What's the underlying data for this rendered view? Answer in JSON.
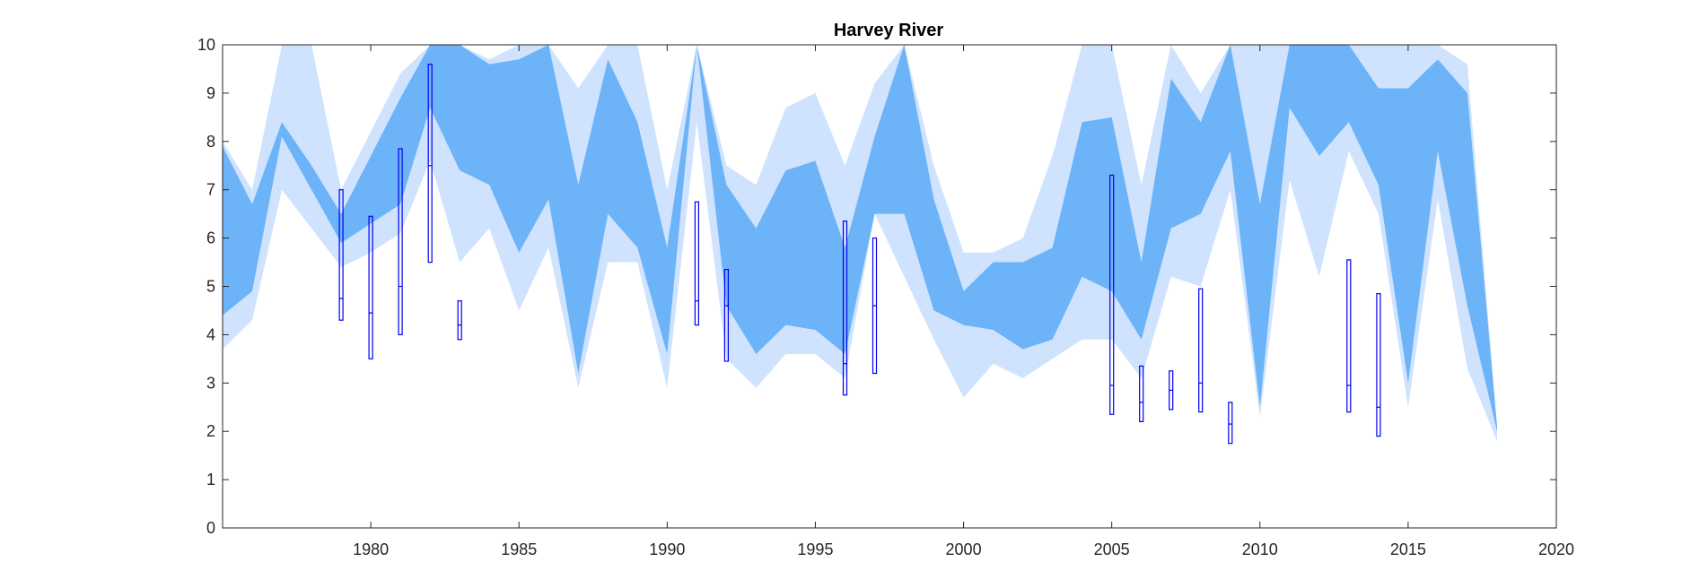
{
  "chart_data": {
    "type": "area",
    "title": "Harvey River",
    "xlabel": "",
    "ylabel": "",
    "xlim": [
      1975,
      2020
    ],
    "ylim": [
      0,
      10
    ],
    "xticks": [
      1980,
      1985,
      1990,
      1995,
      2000,
      2005,
      2010,
      2015,
      2020
    ],
    "yticks": [
      0,
      1,
      2,
      3,
      4,
      5,
      6,
      7,
      8,
      9,
      10
    ],
    "grid": false,
    "colors": {
      "outer_band": "#cfe3ff",
      "inner_band": "#6db3f7",
      "box": "#0000ee",
      "axis": "#262626"
    },
    "outer_band": {
      "x": [
        1975,
        1976,
        1977,
        1978,
        1979,
        1980,
        1981,
        1982,
        1983,
        1984,
        1985,
        1986,
        1987,
        1988,
        1989,
        1990,
        1991,
        1992,
        1993,
        1994,
        1995,
        1996,
        1997,
        1998,
        1999,
        2000,
        2001,
        2002,
        2003,
        2004,
        2005,
        2006,
        2007,
        2008,
        2009,
        2010,
        2011,
        2012,
        2013,
        2014,
        2015,
        2016,
        2017,
        2018
      ],
      "upper": [
        8.0,
        7.0,
        10.0,
        10.0,
        7.0,
        8.2,
        9.4,
        10.0,
        10.0,
        9.7,
        10.0,
        10.0,
        9.1,
        10.0,
        10.0,
        7.0,
        10.0,
        7.5,
        7.1,
        8.7,
        9.0,
        7.5,
        9.2,
        10.0,
        7.5,
        5.7,
        5.7,
        6.0,
        7.7,
        10.0,
        10.0,
        7.1,
        10.0,
        9.0,
        10.0,
        10.0,
        10.0,
        10.0,
        10.0,
        10.0,
        10.0,
        10.0,
        9.6,
        2.1
      ],
      "lower": [
        3.7,
        4.3,
        7.0,
        6.2,
        5.4,
        5.7,
        6.1,
        7.6,
        5.5,
        6.2,
        4.5,
        5.8,
        2.9,
        5.5,
        5.5,
        2.9,
        8.4,
        3.5,
        2.9,
        3.6,
        3.6,
        3.1,
        6.5,
        5.2,
        3.9,
        2.7,
        3.4,
        3.1,
        3.5,
        3.9,
        3.9,
        3.1,
        5.2,
        5.0,
        7.0,
        2.3,
        7.2,
        5.2,
        7.8,
        6.5,
        2.5,
        6.8,
        3.3,
        1.8
      ]
    },
    "inner_band": {
      "x": [
        1975,
        1976,
        1977,
        1978,
        1979,
        1980,
        1981,
        1982,
        1983,
        1984,
        1985,
        1986,
        1987,
        1988,
        1989,
        1990,
        1991,
        1992,
        1993,
        1994,
        1995,
        1996,
        1997,
        1998,
        1999,
        2000,
        2001,
        2002,
        2003,
        2004,
        2005,
        2006,
        2007,
        2008,
        2009,
        2010,
        2011,
        2012,
        2013,
        2014,
        2015,
        2016,
        2017,
        2018
      ],
      "upper": [
        7.9,
        6.7,
        8.4,
        7.5,
        6.5,
        7.7,
        8.9,
        10.0,
        10.0,
        9.6,
        9.7,
        10.0,
        7.1,
        9.7,
        8.4,
        5.8,
        10.0,
        7.1,
        6.2,
        7.4,
        7.6,
        5.8,
        8.1,
        10.0,
        6.8,
        4.9,
        5.5,
        5.5,
        5.8,
        8.4,
        8.5,
        5.5,
        9.3,
        8.4,
        10.0,
        6.7,
        10.0,
        10.0,
        10.0,
        9.1,
        9.1,
        9.7,
        9.0,
        2.1
      ],
      "lower": [
        4.4,
        4.9,
        8.1,
        7.0,
        5.9,
        6.3,
        6.7,
        8.7,
        7.4,
        7.1,
        5.7,
        6.8,
        3.2,
        6.5,
        5.8,
        3.6,
        10.0,
        4.6,
        3.6,
        4.2,
        4.1,
        3.6,
        6.5,
        6.5,
        4.5,
        4.2,
        4.1,
        3.7,
        3.9,
        5.2,
        4.9,
        3.9,
        6.2,
        6.5,
        7.8,
        2.5,
        8.7,
        7.7,
        8.4,
        7.1,
        3.0,
        7.8,
        4.6,
        2.0
      ]
    },
    "boxes": [
      {
        "x": 1979,
        "low": 4.3,
        "median": 4.75,
        "high": 7.0
      },
      {
        "x": 1980,
        "low": 3.5,
        "median": 4.45,
        "high": 6.45
      },
      {
        "x": 1981,
        "low": 4.0,
        "median": 5.0,
        "high": 7.85
      },
      {
        "x": 1982,
        "low": 5.5,
        "median": 7.5,
        "high": 9.6
      },
      {
        "x": 1983,
        "low": 3.9,
        "median": 4.2,
        "high": 4.7
      },
      {
        "x": 1991,
        "low": 4.2,
        "median": 4.7,
        "high": 6.75
      },
      {
        "x": 1992,
        "low": 3.45,
        "median": 4.6,
        "high": 5.35
      },
      {
        "x": 1996,
        "low": 2.75,
        "median": 3.4,
        "high": 6.35
      },
      {
        "x": 1997,
        "low": 3.2,
        "median": 4.6,
        "high": 6.0
      },
      {
        "x": 2005,
        "low": 2.35,
        "median": 2.95,
        "high": 7.3
      },
      {
        "x": 2006,
        "low": 2.2,
        "median": 2.6,
        "high": 3.35
      },
      {
        "x": 2007,
        "low": 2.45,
        "median": 2.85,
        "high": 3.25
      },
      {
        "x": 2008,
        "low": 2.4,
        "median": 3.0,
        "high": 4.95
      },
      {
        "x": 2009,
        "low": 1.75,
        "median": 2.15,
        "high": 2.6
      },
      {
        "x": 2013,
        "low": 2.4,
        "median": 2.95,
        "high": 5.55
      },
      {
        "x": 2014,
        "low": 1.9,
        "median": 2.5,
        "high": 4.85
      }
    ]
  }
}
